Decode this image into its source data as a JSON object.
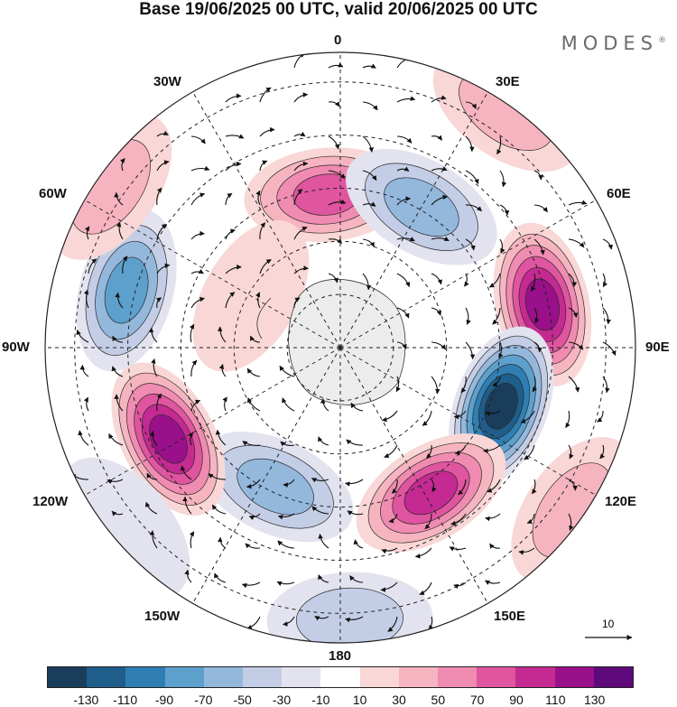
{
  "title": "Base 19/06/2025 00 UTC, valid 20/06/2025 00 UTC",
  "brand": {
    "name": "MODES",
    "mark": "®"
  },
  "longitude_labels": {
    "n0": "0",
    "e30": "30E",
    "e60": "60E",
    "e90": "90E",
    "e120": "120E",
    "e150": "150E",
    "s180": "180",
    "w150": "150W",
    "w120": "120W",
    "w90": "90W",
    "w60": "60W",
    "w30": "30W"
  },
  "reference_vector": {
    "value": "10"
  },
  "colorbar": {
    "colors": [
      "#1a3d5c",
      "#1f5d8a",
      "#2f7fb4",
      "#5ea0cc",
      "#93b8dc",
      "#c3cde6",
      "#e3e3f0",
      "#ffffff",
      "#f9d7d7",
      "#f6b4c0",
      "#f08bb1",
      "#e0559f",
      "#c42a92",
      "#99108a",
      "#5e0a7c"
    ],
    "ticks": [
      "-130",
      "-110",
      "-90",
      "-70",
      "-50",
      "-30",
      "-10",
      "10",
      "30",
      "50",
      "70",
      "90",
      "110",
      "130"
    ]
  },
  "anomalies": [
    {
      "lon": 355,
      "r": 0.52,
      "v": 85
    },
    {
      "lon": 30,
      "r": 0.55,
      "v": -55
    },
    {
      "lon": 78,
      "r": 0.7,
      "v": 110
    },
    {
      "lon": 110,
      "r": 0.58,
      "v": -130
    },
    {
      "lon": 148,
      "r": 0.58,
      "v": 100
    },
    {
      "lon": 205,
      "r": 0.52,
      "v": -65
    },
    {
      "lon": 242,
      "r": 0.66,
      "v": 115
    },
    {
      "lon": 285,
      "r": 0.75,
      "v": -80
    },
    {
      "lon": 300,
      "r": 0.35,
      "v": 25
    },
    {
      "lon": 35,
      "r": 0.98,
      "v": 30
    },
    {
      "lon": 305,
      "r": 0.95,
      "v": 35
    },
    {
      "lon": 230,
      "r": 0.95,
      "v": -25
    },
    {
      "lon": 178,
      "r": 0.92,
      "v": -35
    },
    {
      "lon": 125,
      "r": 0.96,
      "v": 35
    }
  ]
}
